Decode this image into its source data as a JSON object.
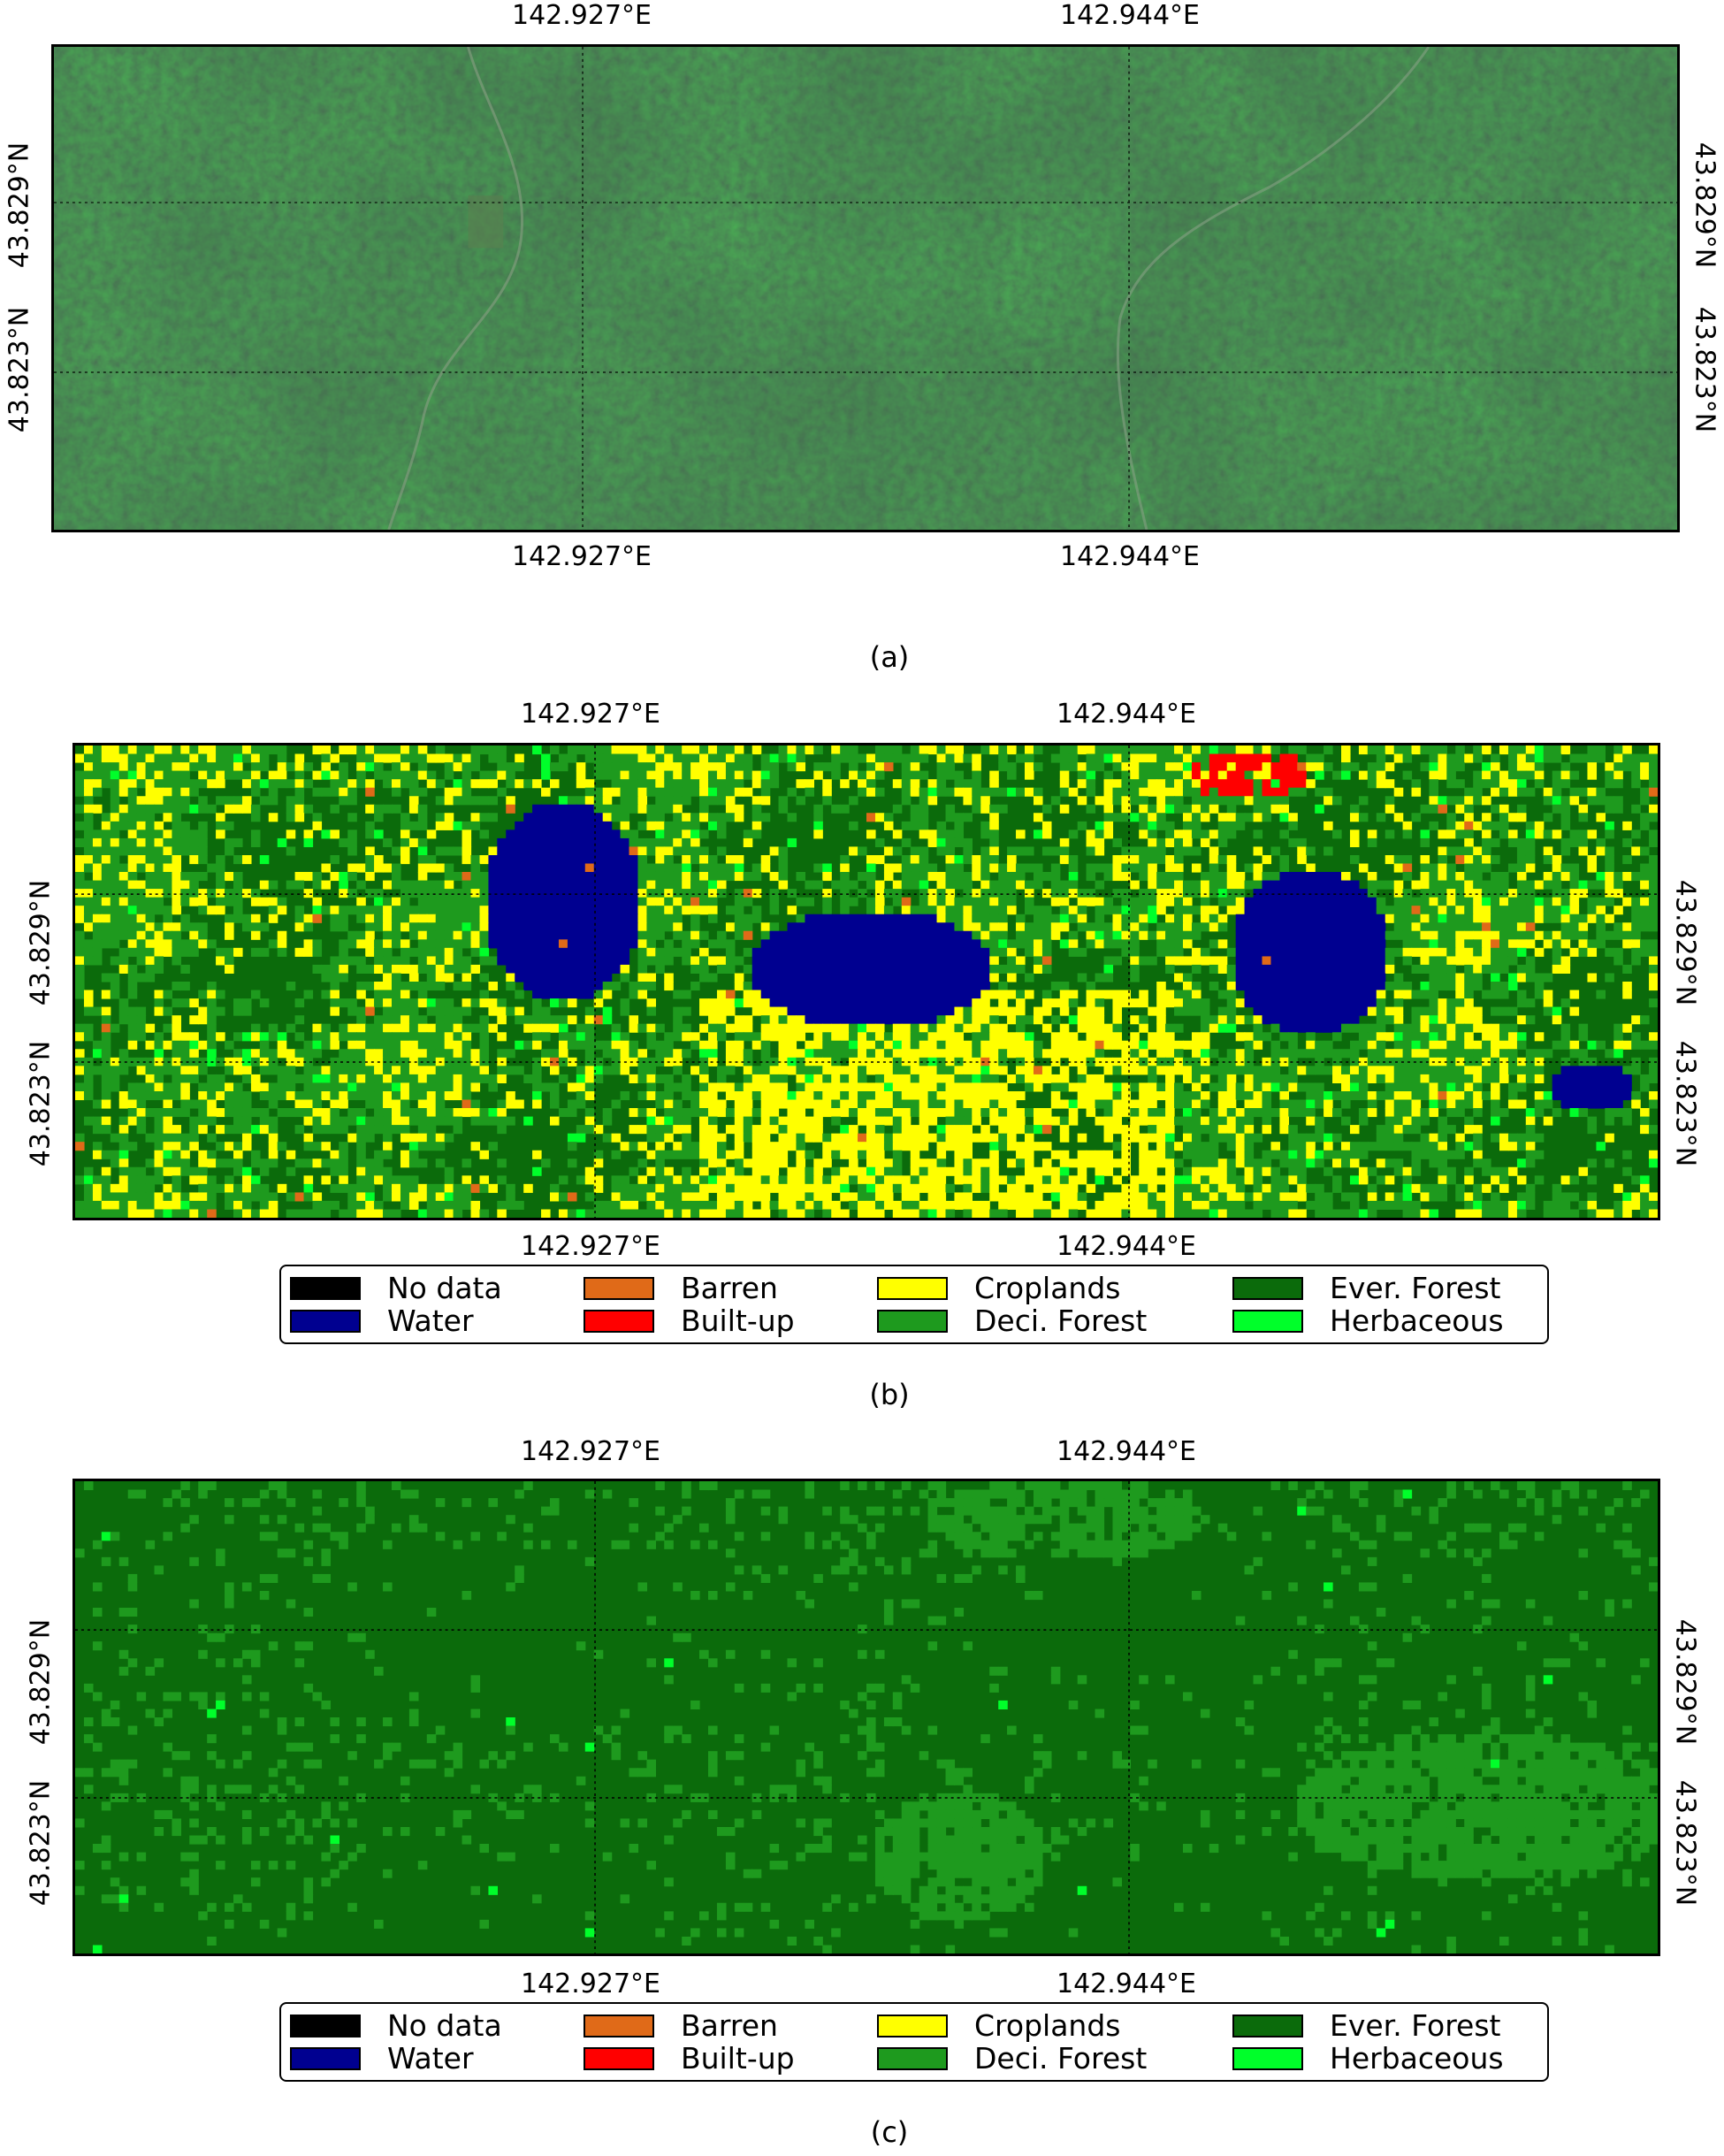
{
  "coordinates": {
    "lon_labels": [
      "142.927°E",
      "142.944°E"
    ],
    "lat_labels": [
      "43.829°N",
      "43.823°N"
    ]
  },
  "panels": [
    {
      "caption": "(a)",
      "kind": "satellite"
    },
    {
      "caption": "(b)",
      "kind": "classification"
    },
    {
      "caption": "(c)",
      "kind": "classification"
    }
  ],
  "legend": [
    {
      "label": "No data",
      "color": "#000000"
    },
    {
      "label": "Barren",
      "color": "#e06a18"
    },
    {
      "label": "Croplands",
      "color": "#ffff00"
    },
    {
      "label": "Ever. Forest",
      "color": "#0b6b0b"
    },
    {
      "label": "Water",
      "color": "#000090"
    },
    {
      "label": "Built-up",
      "color": "#ff0000"
    },
    {
      "label": "Deci. Forest",
      "color": "#1e9a1e"
    },
    {
      "label": "Herbaceous",
      "color": "#00ff2a"
    }
  ]
}
